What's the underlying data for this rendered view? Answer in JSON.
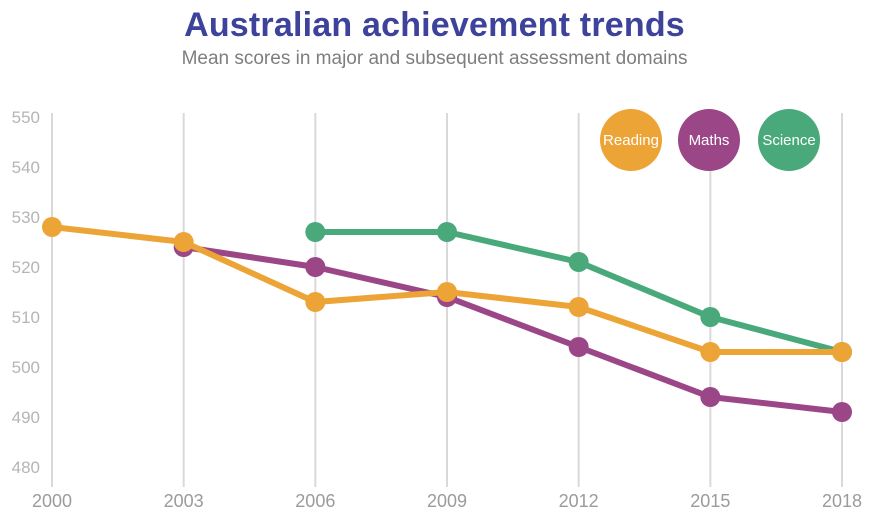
{
  "header": {
    "title": "Australian achievement trends",
    "subtitle": "Mean scores in major and subsequent assessment domains"
  },
  "theme": {
    "background": "#FFFFFF",
    "title_color": "#3D429B",
    "subtitle_color": "#7E7E7E",
    "gridline_color": "#D9D9D9",
    "y_tick_color": "#B5B5B5",
    "x_tick_color": "#9B9B9B",
    "legend_text_color": "#FFFFFF"
  },
  "chart_data": {
    "type": "line",
    "title": "Australian achievement trends",
    "subtitle": "Mean scores in major and subsequent assessment domains",
    "x_categories": [
      "2000",
      "2003",
      "2006",
      "2009",
      "2012",
      "2015",
      "2018"
    ],
    "y_ticks": [
      550,
      540,
      530,
      520,
      510,
      500,
      490,
      480
    ],
    "ylim": [
      476,
      551
    ],
    "grid": "vertical-only",
    "legend_position": "top-right",
    "legend_order": [
      "Reading",
      "Maths",
      "Science"
    ],
    "series": [
      {
        "name": "Science",
        "color": "#49A97B",
        "values": [
          null,
          null,
          527,
          527,
          521,
          510,
          503
        ]
      },
      {
        "name": "Maths",
        "color": "#9A4687",
        "values": [
          null,
          524,
          520,
          514,
          504,
          494,
          491
        ]
      },
      {
        "name": "Reading",
        "color": "#EDA437",
        "values": [
          528,
          525,
          513,
          515,
          512,
          503,
          503
        ]
      }
    ]
  }
}
